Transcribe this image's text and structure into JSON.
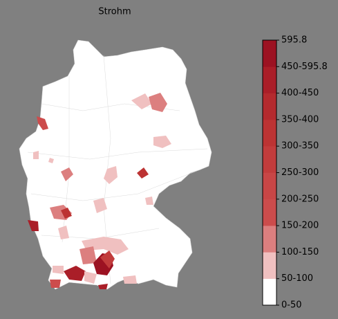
{
  "title": "Strohm",
  "colorbar": {
    "labels": [
      "0-50",
      "50-100",
      "100-150",
      "150-200",
      "200-250",
      "250-300",
      "300-350",
      "350-400",
      "400-450",
      "450-595.8",
      "595.8"
    ],
    "colors": [
      "#ffffff",
      "#f0c0c0",
      "#dc7f7f",
      "#cc4c4c",
      "#c84646",
      "#c23c3c",
      "#bc3333",
      "#b42a2e",
      "#aa1e28",
      "#9c1222"
    ]
  }
}
